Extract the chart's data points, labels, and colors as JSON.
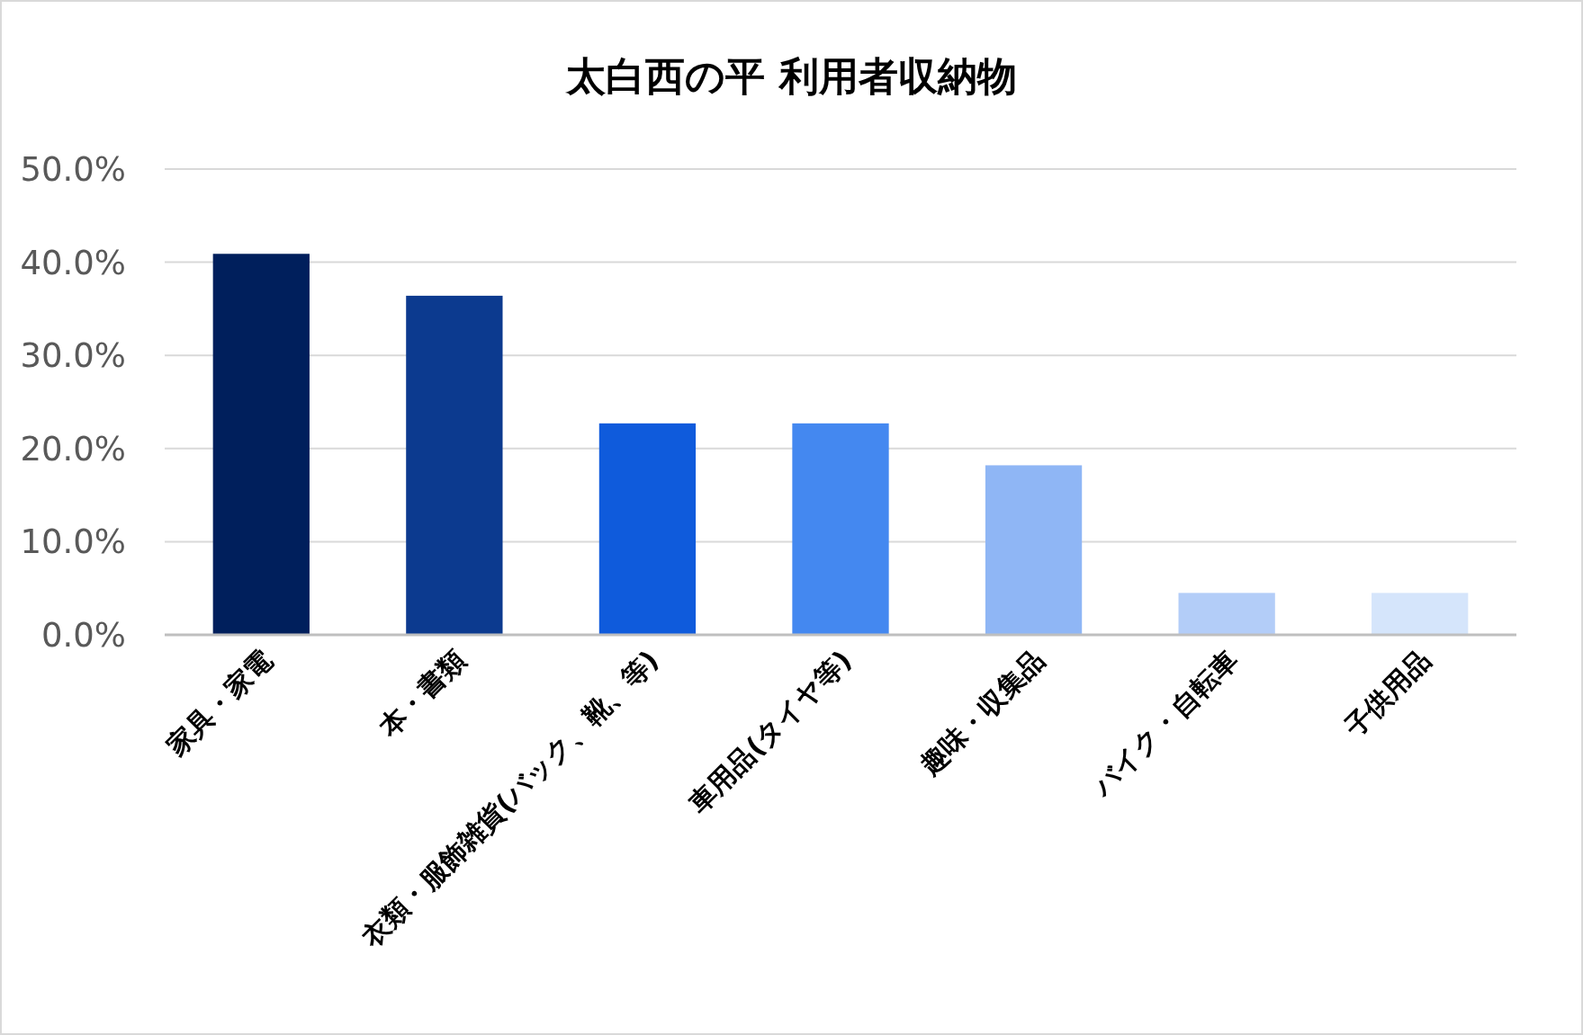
{
  "chart_data": {
    "type": "bar",
    "title": "太白西の平 利用者収納物",
    "categories": [
      "家具・家電",
      "本・書類",
      "衣類・服飾雑貨(バック、靴、等)",
      "車用品(タイヤ等)",
      "趣味・収集品",
      "バイク・自転車",
      "子供用品"
    ],
    "values": [
      40.9,
      36.4,
      22.7,
      22.7,
      18.2,
      4.5,
      4.5
    ],
    "colors": [
      "#001f5c",
      "#0c3a8f",
      "#0f5bdc",
      "#4488f0",
      "#8fb6f5",
      "#b3cdf8",
      "#d5e5fb"
    ],
    "ylim": [
      0,
      50
    ],
    "yticks": [
      {
        "value": 0,
        "label": "0.0%"
      },
      {
        "value": 10,
        "label": "10.0%"
      },
      {
        "value": 20,
        "label": "20.0%"
      },
      {
        "value": 30,
        "label": "30.0%"
      },
      {
        "value": 40,
        "label": "40.0%"
      },
      {
        "value": 50,
        "label": "50.0%"
      }
    ],
    "grid": "y"
  }
}
